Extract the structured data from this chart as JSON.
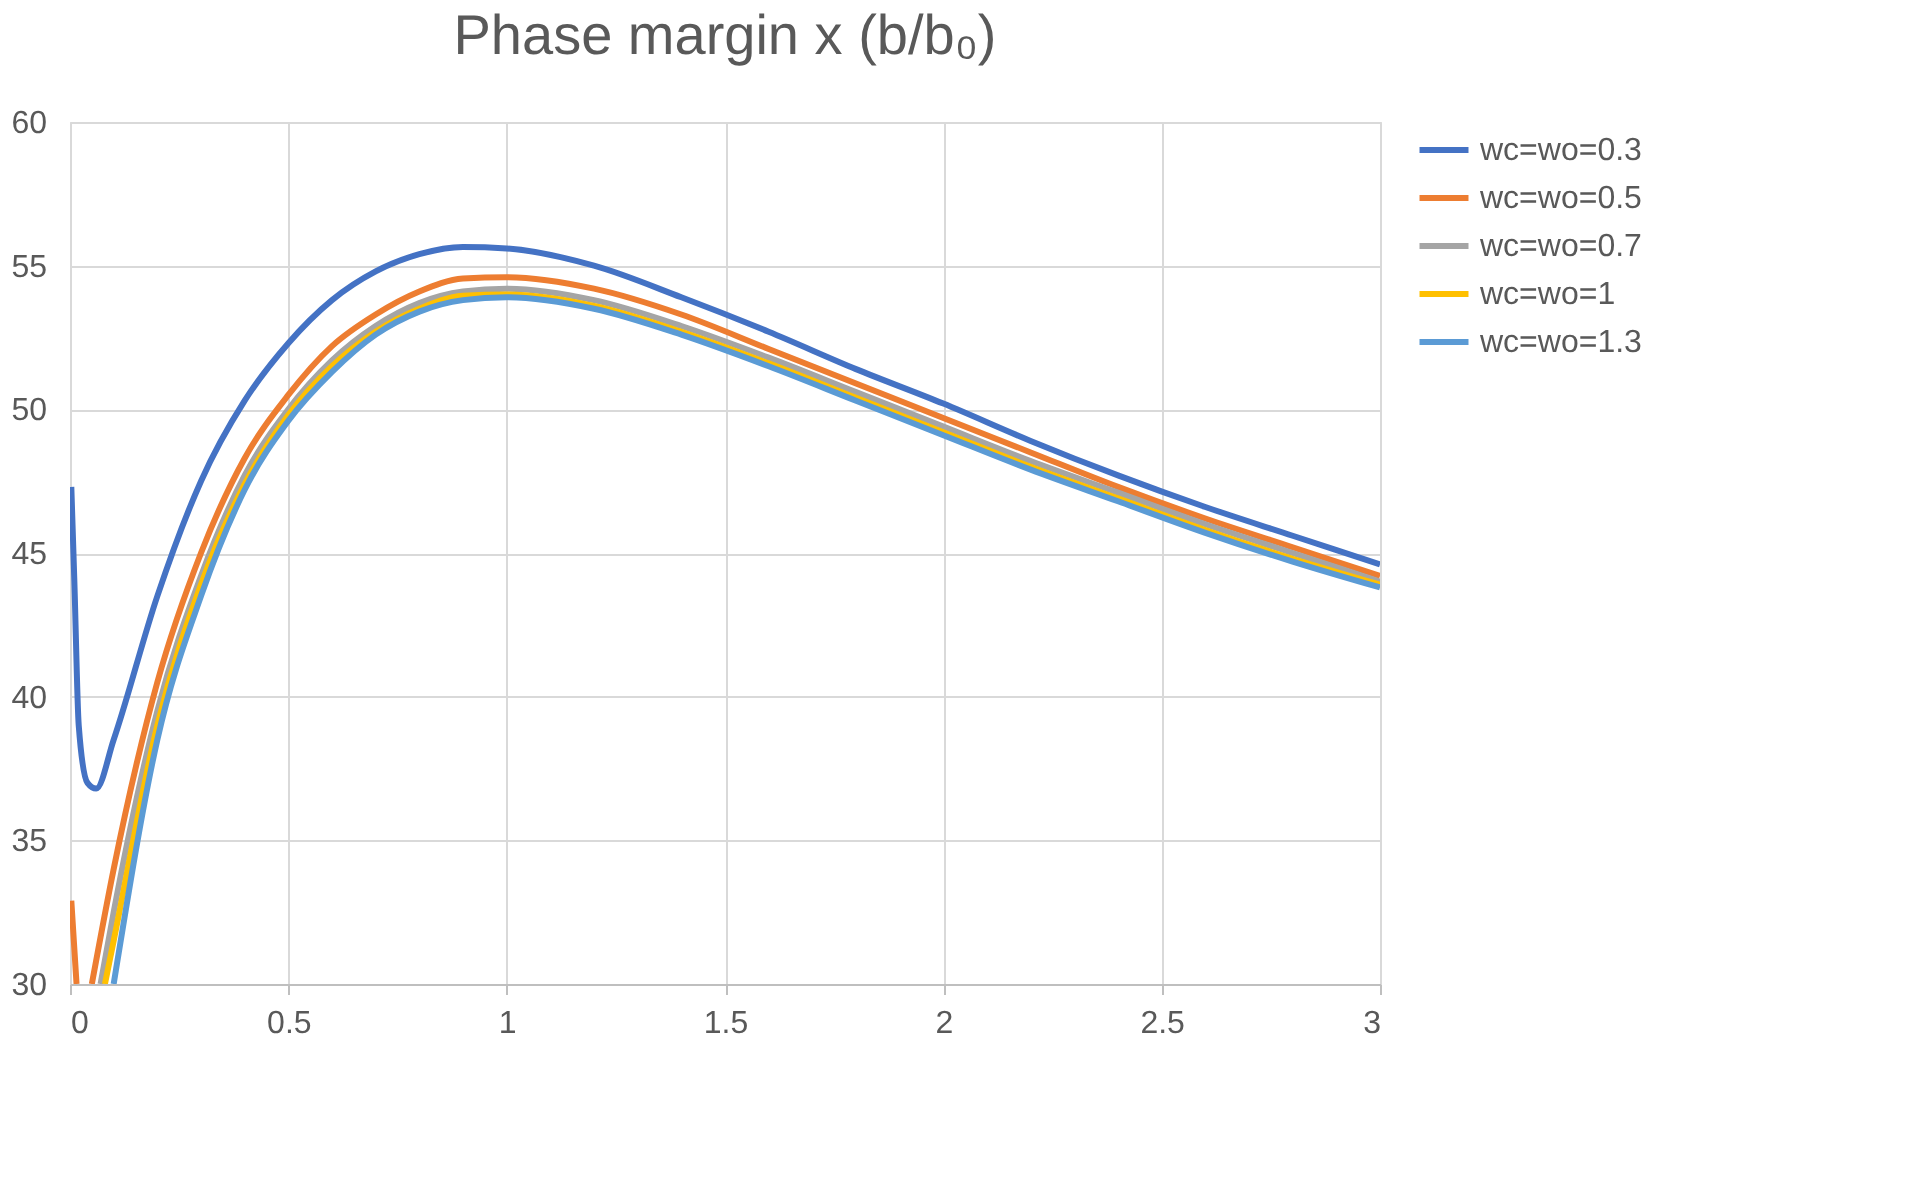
{
  "chart_data": {
    "type": "line",
    "title": "Phase margin x  (b/b₀)",
    "xlim": [
      0,
      3
    ],
    "xticks": [
      0,
      0.5,
      1,
      1.5,
      2,
      2.5,
      3
    ],
    "ylim": [
      30,
      60
    ],
    "yticks": [
      30,
      35,
      40,
      45,
      50,
      55,
      60
    ],
    "grid": true,
    "legend": "right",
    "marker": "none",
    "line_style": "solid",
    "series": [
      {
        "name": "wc=wo=0.3",
        "color": "#4472c4",
        "x": [
          0.003,
          0.01,
          0.02,
          0.04,
          0.06,
          0.1,
          0.2,
          0.3,
          0.4,
          0.5,
          0.6,
          0.7,
          0.8,
          0.9,
          1.0,
          1.2,
          1.4,
          1.6,
          1.8,
          2.0,
          2.2,
          2.4,
          2.6,
          2.8,
          3.0
        ],
        "values": [
          47.3,
          44,
          39,
          37,
          36.8,
          38.5,
          43.5,
          47.5,
          50.3,
          52.3,
          53.8,
          54.8,
          55.4,
          55.65,
          55.6,
          55.0,
          53.9,
          52.7,
          51.4,
          50.2,
          48.9,
          47.7,
          46.6,
          45.6,
          44.6
        ]
      },
      {
        "name": "wc=wo=0.5",
        "color": "#ed7d31",
        "x": [
          0.003,
          0.015,
          0.03,
          0.05,
          0.1,
          0.2,
          0.3,
          0.4,
          0.5,
          0.6,
          0.7,
          0.8,
          0.9,
          1.0,
          1.2,
          1.4,
          1.6,
          1.8,
          2.0,
          2.2,
          2.4,
          2.6,
          2.8,
          3.0
        ],
        "values": [
          32.9,
          30,
          null,
          30,
          34,
          40.5,
          45,
          48.3,
          50.5,
          52.2,
          53.3,
          54.1,
          54.55,
          54.6,
          54.2,
          53.3,
          52.1,
          50.9,
          49.7,
          48.5,
          47.3,
          46.2,
          45.2,
          44.2
        ]
      },
      {
        "name": "wc=wo=0.7",
        "color": "#a5a5a5",
        "x": [
          0.07,
          0.1,
          0.2,
          0.3,
          0.4,
          0.5,
          0.6,
          0.7,
          0.8,
          0.9,
          1.0,
          1.2,
          1.4,
          1.6,
          1.8,
          2.0,
          2.2,
          2.4,
          2.6,
          2.8,
          3.0
        ],
        "values": [
          30,
          32.5,
          39.5,
          44.2,
          47.7,
          50,
          51.7,
          52.9,
          53.7,
          54.1,
          54.2,
          53.8,
          52.9,
          51.8,
          50.6,
          49.4,
          48.2,
          47.1,
          46,
          45,
          44
        ]
      },
      {
        "name": "wc=wo=1",
        "color": "#ffc000",
        "x": [
          0.08,
          0.1,
          0.2,
          0.3,
          0.4,
          0.5,
          0.6,
          0.7,
          0.8,
          0.9,
          1.0,
          1.2,
          1.4,
          1.6,
          1.8,
          2.0,
          2.2,
          2.4,
          2.6,
          2.8,
          3.0
        ],
        "values": [
          30,
          31.5,
          39,
          43.9,
          47.4,
          49.8,
          51.5,
          52.7,
          53.5,
          53.95,
          54.0,
          53.6,
          52.7,
          51.6,
          50.4,
          49.2,
          48.0,
          46.9,
          45.8,
          44.8,
          43.9
        ]
      },
      {
        "name": "wc=wo=1.3",
        "color": "#5b9bd5",
        "x": [
          0.1,
          0.2,
          0.3,
          0.4,
          0.5,
          0.6,
          0.7,
          0.8,
          0.9,
          1.0,
          1.2,
          1.4,
          1.6,
          1.8,
          2.0,
          2.2,
          2.4,
          2.6,
          2.8,
          3.0
        ],
        "values": [
          30,
          38.5,
          43.5,
          47.2,
          49.6,
          51.3,
          52.6,
          53.4,
          53.8,
          53.9,
          53.5,
          52.6,
          51.5,
          50.3,
          49.1,
          47.9,
          46.8,
          45.7,
          44.7,
          43.8
        ]
      }
    ]
  }
}
